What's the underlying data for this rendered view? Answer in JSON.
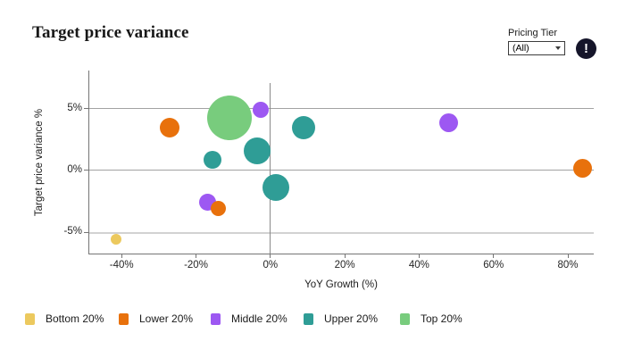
{
  "title": "Target price variance",
  "controls": {
    "filter_label": "Pricing Tier",
    "filter_value": "(All)",
    "info_glyph": "!"
  },
  "legend": {
    "items": [
      {
        "label": "Bottom 20%",
        "color": "#ecc95e"
      },
      {
        "label": "Lower 20%",
        "color": "#e8710c"
      },
      {
        "label": "Middle 20%",
        "color": "#9d58f2"
      },
      {
        "label": "Upper 20%",
        "color": "#2f9d96"
      },
      {
        "label": "Top 20%",
        "color": "#78cc7d"
      }
    ]
  },
  "chart_data": {
    "type": "scatter",
    "title": "Target price variance",
    "xlabel": "YoY Growth (%)",
    "ylabel": "Target price variance %",
    "xlim": [
      -48.7,
      87.2
    ],
    "ylim": [
      -6.8,
      8.1
    ],
    "x_tick_values": [
      -40,
      -20,
      0,
      20,
      40,
      60,
      80
    ],
    "x_ticks": [
      "-40%",
      "-20%",
      "0%",
      "20%",
      "40%",
      "60%",
      "80%"
    ],
    "y_tick_values": [
      5,
      0,
      -5
    ],
    "y_ticks": [
      "5%",
      "0%",
      "-5%"
    ],
    "grid": true,
    "zero_x_reference_line": true,
    "legend_position": "bottom",
    "series": [
      {
        "name": "Bottom 20%",
        "color": "#ecc95e",
        "draw_order": 1,
        "points": [
          {
            "x": -41.5,
            "y": -5.6,
            "r": 6
          }
        ]
      },
      {
        "name": "Lower 20%",
        "color": "#e8710c",
        "draw_order": 5,
        "points": [
          {
            "x": -27,
            "y": 3.5,
            "r": 11
          },
          {
            "x": -14,
            "y": -3.1,
            "r": 8.5
          },
          {
            "x": 84,
            "y": 0.2,
            "r": 10.5
          }
        ]
      },
      {
        "name": "Middle 20%",
        "color": "#9d58f2",
        "draw_order": 2,
        "points": [
          {
            "x": -17,
            "y": -2.6,
            "r": 9.5
          },
          {
            "x": -2.5,
            "y": 4.9,
            "r": 9
          },
          {
            "x": 48,
            "y": 3.9,
            "r": 10.5
          }
        ]
      },
      {
        "name": "Upper 20%",
        "color": "#2f9d96",
        "draw_order": 3,
        "points": [
          {
            "x": -15.5,
            "y": 0.9,
            "r": 10
          },
          {
            "x": -3.5,
            "y": 1.6,
            "r": 15
          },
          {
            "x": 1.5,
            "y": -1.4,
            "r": 15
          },
          {
            "x": 9,
            "y": 3.5,
            "r": 13
          }
        ]
      },
      {
        "name": "Top 20%",
        "color": "#78cc7d",
        "draw_order": 4,
        "points": [
          {
            "x": -11,
            "y": 4.3,
            "r": 25
          }
        ]
      }
    ]
  }
}
